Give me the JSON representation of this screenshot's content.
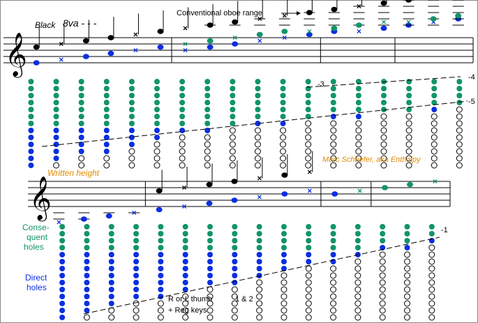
{
  "colors": {
    "black": "#000000",
    "blue": "#0a2fe0",
    "green": "#12946a",
    "orange": "#e08a00",
    "open": "#ffffff",
    "border": "#888888"
  },
  "top_annotations": {
    "black_8va": "Black",
    "ottava_mark": "8va - - -",
    "conventional_range": "Conventional oboe range"
  },
  "bottom_annotations": {
    "written_height": "Written height",
    "author": "Marc Schaefer, aka Enthalpy"
  },
  "side_labels": {
    "consequent_line1": "Conse-",
    "consequent_line2": "quent",
    "consequent_line3": "holes",
    "direct_line1": "Direct",
    "direct_line2": "holes"
  },
  "bottom_notes": {
    "thumb_line1": "R or L thumb",
    "thumb_line2": "+ Reg keys",
    "keys_12": "1 & 2"
  },
  "register_labels": {
    "r3": "-3",
    "r4": "-4",
    "r5": "-5",
    "r1": "-1"
  },
  "top_system": {
    "measures": 5,
    "notes": [
      {
        "head": "dot",
        "color": "black",
        "step": 7,
        "alt_color": "blue",
        "alt_step": 2,
        "alt_head": "dot"
      },
      {
        "head": "x",
        "color": "black",
        "step": 8,
        "alt_color": "blue",
        "alt_step": 3,
        "alt_head": "x"
      },
      {
        "head": "dot",
        "color": "black",
        "step": 9,
        "alt_color": "blue",
        "alt_step": 4,
        "alt_head": "dot"
      },
      {
        "head": "dot",
        "color": "black",
        "step": 10,
        "alt_color": "blue",
        "alt_step": 5,
        "alt_head": "dot"
      },
      {
        "head": "x",
        "color": "black",
        "step": 11,
        "alt_color": "blue",
        "alt_step": 6,
        "alt_head": "x"
      },
      {
        "head": "dot",
        "color": "black",
        "step": 12,
        "alt_color": "blue",
        "alt_step": 7,
        "alt_head": "dot"
      },
      {
        "head": "x",
        "color": "black",
        "step": 13,
        "alt_color": "blue",
        "alt_step": 6,
        "alt_head": "x",
        "third_color": "green",
        "third_step": 8,
        "third_head": "x"
      },
      {
        "head": "dot",
        "color": "black",
        "step": 14,
        "alt_color": "blue",
        "alt_step": 7,
        "alt_head": "dot",
        "third_color": "green",
        "third_step": 9,
        "third_head": "dot"
      },
      {
        "head": "dot",
        "color": "black",
        "step": 15,
        "alt_color": "blue",
        "alt_step": 8,
        "alt_head": "dot",
        "third_color": "green",
        "third_step": 10,
        "third_head": "x"
      },
      {
        "head": "x",
        "color": "black",
        "step": 16,
        "alt_color": "blue",
        "alt_step": 9,
        "alt_head": "x",
        "third_color": "green",
        "third_step": 11,
        "third_head": "dot"
      },
      {
        "head": "x",
        "color": "black",
        "step": 17,
        "alt_color": "blue",
        "alt_step": 10,
        "alt_head": "x",
        "third_color": "green",
        "third_step": 12,
        "third_head": "dot"
      },
      {
        "head": "dot",
        "color": "black",
        "step": 18,
        "alt_color": "blue",
        "alt_step": 11,
        "alt_head": "dot",
        "third_color": "green",
        "third_step": 12,
        "third_head": "x"
      },
      {
        "head": "dot",
        "color": "black",
        "step": 19,
        "alt_color": "blue",
        "alt_step": 12,
        "alt_head": "dot",
        "third_color": "green",
        "third_step": 13,
        "third_head": "dot"
      },
      {
        "head": "x",
        "color": "black",
        "step": 20,
        "alt_color": "blue",
        "alt_step": 12,
        "alt_head": "x",
        "third_color": "green",
        "third_step": 14,
        "third_head": "dot"
      },
      {
        "head": "dot",
        "color": "black",
        "step": 21,
        "alt_color": "blue",
        "alt_step": 13,
        "alt_head": "dot",
        "third_color": "green",
        "third_step": 15,
        "third_head": "x"
      },
      {
        "head": "dot",
        "color": "black",
        "step": 22,
        "alt_color": "blue",
        "alt_step": 14,
        "alt_head": "dot",
        "third_color": "green",
        "third_step": 15,
        "third_head": "x"
      },
      {
        "head": "x",
        "color": "black",
        "step": 23,
        "alt_color": "blue",
        "alt_step": 15,
        "alt_head": "x",
        "third_color": "green",
        "third_step": 16,
        "third_head": "dot"
      },
      {
        "head": "dot",
        "color": "black",
        "step": 24,
        "alt_color": "blue",
        "alt_step": 16,
        "alt_head": "dot",
        "third_color": "green",
        "third_step": 17,
        "third_head": "dot"
      }
    ],
    "fingerings": [
      {
        "green": 7,
        "blue_closed": 6,
        "open": 0
      },
      {
        "green": 7,
        "blue_closed": 5,
        "open": 1
      },
      {
        "green": 7,
        "blue_closed": 4,
        "open": 2
      },
      {
        "green": 7,
        "blue_closed": 4,
        "open": 2
      },
      {
        "green": 7,
        "blue_closed": 3,
        "open": 3
      },
      {
        "green": 7,
        "blue_closed": 2,
        "open": 4
      },
      {
        "green": 7,
        "blue_closed": 1,
        "open": 5
      },
      {
        "green": 7,
        "blue_closed": 1,
        "open": 5
      },
      {
        "green": 7,
        "blue_closed": 0,
        "open": 6
      },
      {
        "green": 6,
        "blue_closed": 1,
        "open": 6
      },
      {
        "green": 6,
        "blue_closed": 1,
        "open": 6
      },
      {
        "green": 6,
        "blue_closed": 0,
        "open": 7
      },
      {
        "green": 5,
        "blue_closed": 1,
        "open": 7
      },
      {
        "green": 5,
        "blue_closed": 1,
        "open": 7
      },
      {
        "green": 5,
        "blue_closed": 0,
        "open": 8
      },
      {
        "green": 5,
        "blue_closed": 0,
        "open": 8
      },
      {
        "green": 4,
        "blue_closed": 1,
        "open": 8
      },
      {
        "green": 4,
        "blue_closed": 0,
        "open": 9
      }
    ]
  },
  "bottom_system": {
    "measures": 5,
    "notes": [
      {
        "head": "x",
        "color": "blue",
        "step": -3
      },
      {
        "head": "dot",
        "color": "blue",
        "step": -2
      },
      {
        "head": "dot",
        "color": "blue",
        "step": -1
      },
      {
        "head": "x",
        "color": "blue",
        "step": 0
      },
      {
        "head": "dot",
        "color": "black",
        "step": 7,
        "alt_color": "blue",
        "alt_step": 1,
        "alt_head": "dot"
      },
      {
        "head": "x",
        "color": "black",
        "step": 8,
        "alt_color": "blue",
        "alt_step": 2,
        "alt_head": "x"
      },
      {
        "head": "dot",
        "color": "black",
        "step": 9,
        "alt_color": "blue",
        "alt_step": 3,
        "alt_head": "dot"
      },
      {
        "head": "dot",
        "color": "black",
        "step": 10,
        "alt_color": "blue",
        "alt_step": 4,
        "alt_head": "dot"
      },
      {
        "head": "x",
        "color": "black",
        "step": 11,
        "alt_color": "blue",
        "alt_step": 5,
        "alt_head": "x"
      },
      {
        "head": "dot",
        "color": "black",
        "step": 12,
        "alt_color": "blue",
        "alt_step": 6,
        "alt_head": "dot"
      },
      {
        "head": "x",
        "color": "black",
        "step": 13,
        "alt_color": "blue",
        "alt_step": 7,
        "alt_head": "x"
      },
      {
        "head": "dot",
        "color": "blue",
        "step": 6
      },
      {
        "head": "x",
        "color": "green",
        "step": 7
      },
      {
        "head": "dot",
        "color": "green",
        "step": 8
      },
      {
        "head": "dot",
        "color": "green",
        "step": 9
      },
      {
        "head": "x",
        "color": "green",
        "step": 10
      }
    ],
    "fingerings": [
      {
        "green": 4,
        "blue_closed": 10,
        "open": 0
      },
      {
        "green": 4,
        "blue_closed": 9,
        "open": 1
      },
      {
        "green": 4,
        "blue_closed": 8,
        "open": 2
      },
      {
        "green": 4,
        "blue_closed": 7,
        "open": 3
      },
      {
        "green": 4,
        "blue_closed": 7,
        "open": 3
      },
      {
        "green": 4,
        "blue_closed": 6,
        "open": 4
      },
      {
        "green": 4,
        "blue_closed": 5,
        "open": 5
      },
      {
        "green": 4,
        "blue_closed": 5,
        "open": 5
      },
      {
        "green": 4,
        "blue_closed": 4,
        "open": 6
      },
      {
        "green": 4,
        "blue_closed": 3,
        "open": 7
      },
      {
        "green": 4,
        "blue_closed": 2,
        "open": 8
      },
      {
        "green": 4,
        "blue_closed": 2,
        "open": 8
      },
      {
        "green": 4,
        "blue_closed": 1,
        "open": 9
      },
      {
        "green": 3,
        "blue_closed": 1,
        "open": 10
      },
      {
        "green": 3,
        "blue_closed": 1,
        "open": 10
      },
      {
        "green": 2,
        "blue_closed": 1,
        "open": 11
      }
    ]
  }
}
